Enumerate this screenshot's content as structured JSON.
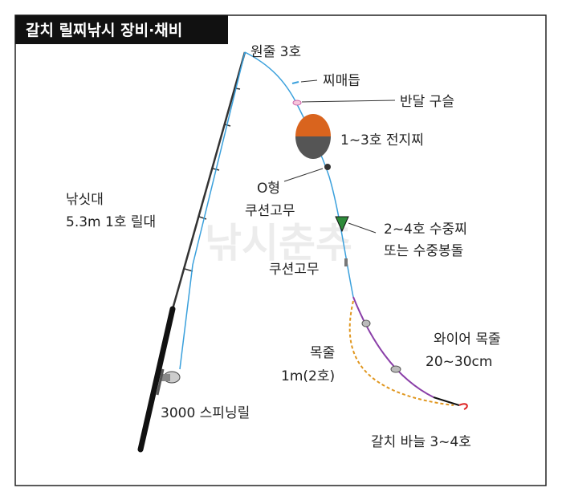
{
  "header": {
    "title": "갈치 릴찌낚시 장비·채비"
  },
  "watermark": "낚시춘추",
  "labels": {
    "main_line": "원줄 3호",
    "float_stopper": "찌매듭",
    "half_bead": "반달 구슬",
    "float": "1~3호 전지찌",
    "o_cushion": [
      "O형",
      "쿠션고무"
    ],
    "rod": [
      "낚싯대",
      "5.3m 1호 릴대"
    ],
    "underwater_float": [
      "2~4호 수중찌",
      "또는 수중봉돌"
    ],
    "cushion": "쿠션고무",
    "leader": [
      "목줄",
      "1m(2호)"
    ],
    "wire_leader": [
      "와이어 목줄",
      "20~30cm"
    ],
    "reel": "3000 스피닝릴",
    "hook": "갈치 바늘 3~4호"
  }
}
